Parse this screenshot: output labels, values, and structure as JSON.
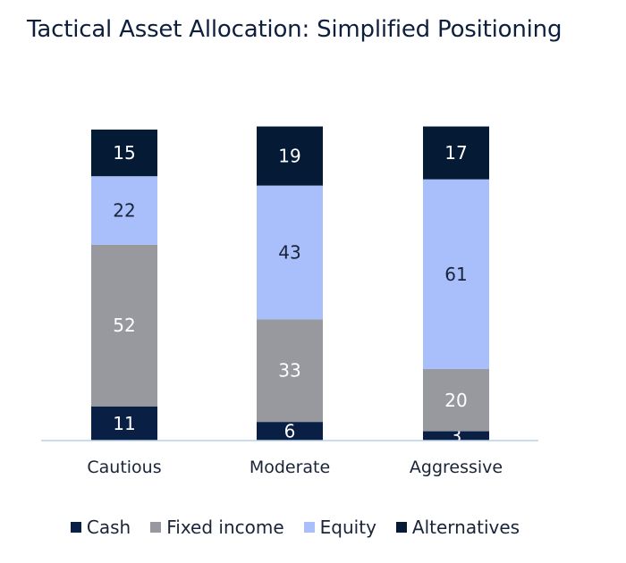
{
  "chart_data": {
    "type": "bar",
    "stacked": true,
    "title": "Tactical Asset Allocation: Simplified Positioning",
    "categories": [
      "Cautious",
      "Moderate",
      "Aggressive"
    ],
    "series": [
      {
        "name": "Cash",
        "color": "#0a1f44",
        "label_color": "#ffffff",
        "values": [
          11,
          6,
          3
        ]
      },
      {
        "name": "Fixed income",
        "color": "#97999f",
        "label_color": "#ffffff",
        "values": [
          52,
          33,
          20
        ]
      },
      {
        "name": "Equity",
        "color": "#a9bffc",
        "label_color": "#1a2438",
        "values": [
          22,
          43,
          61
        ]
      },
      {
        "name": "Alternatives",
        "color": "#041a35",
        "label_color": "#ffffff",
        "values": [
          15,
          19,
          17
        ]
      }
    ],
    "ylim": [
      0,
      100
    ],
    "grid": false,
    "legend_position": "bottom",
    "axis_color": "#b8d2ea"
  }
}
